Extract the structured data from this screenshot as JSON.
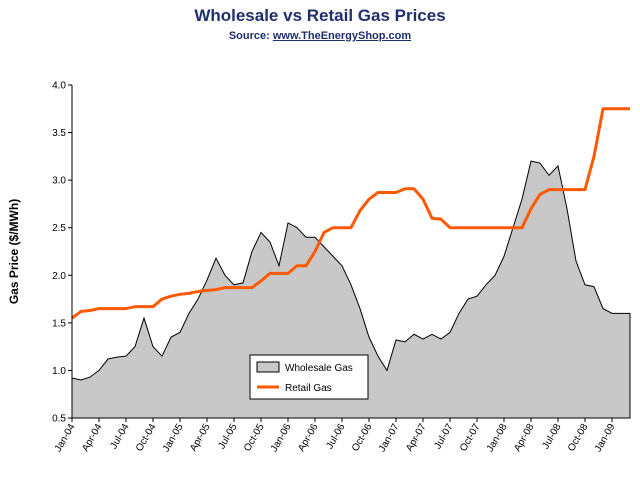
{
  "header": {
    "title": "Wholesale vs Retail Gas Prices",
    "source_prefix": "Source: ",
    "source_link": "www.TheEnergyShop.com"
  },
  "chart_data": {
    "type": "area",
    "title": "Wholesale vs Retail Gas Prices",
    "xlabel": "",
    "ylabel": "Gas Price ($/MWh)",
    "ylim": [
      0.5,
      4.0
    ],
    "yticks": [
      0.5,
      1.0,
      1.5,
      2.0,
      2.5,
      3.0,
      3.5,
      4.0
    ],
    "ytick_labels": [
      "0.5",
      "1.0",
      "1.5",
      "2.0",
      "2.5",
      "3.0",
      "3.5",
      "4.0"
    ],
    "grid": false,
    "legend_position": "bottom-center",
    "categories": [
      "Jan-04",
      "Feb-04",
      "Mar-04",
      "Apr-04",
      "May-04",
      "Jun-04",
      "Jul-04",
      "Aug-04",
      "Sep-04",
      "Oct-04",
      "Nov-04",
      "Dec-04",
      "Jan-05",
      "Feb-05",
      "Mar-05",
      "Apr-05",
      "May-05",
      "Jun-05",
      "Jul-05",
      "Aug-05",
      "Sep-05",
      "Oct-05",
      "Nov-05",
      "Dec-05",
      "Jan-06",
      "Feb-06",
      "Mar-06",
      "Apr-06",
      "May-06",
      "Jun-06",
      "Jul-06",
      "Aug-06",
      "Sep-06",
      "Oct-06",
      "Nov-06",
      "Dec-06",
      "Jan-07",
      "Feb-07",
      "Mar-07",
      "Apr-07",
      "May-07",
      "Jun-07",
      "Jul-07",
      "Aug-07",
      "Sep-07",
      "Oct-07",
      "Nov-07",
      "Dec-07",
      "Jan-08",
      "Feb-08",
      "Mar-08",
      "Apr-08",
      "May-08",
      "Jun-08",
      "Jul-08",
      "Aug-08",
      "Sep-08",
      "Oct-08",
      "Nov-08",
      "Dec-08",
      "Jan-09",
      "Feb-09",
      "Mar-09"
    ],
    "x_tick_labels": [
      "Jan-04",
      "Apr-04",
      "Jul-04",
      "Oct-04",
      "Jan-05",
      "Apr-05",
      "Jul-05",
      "Oct-05",
      "Jan-06",
      "Apr-06",
      "Jul-06",
      "Oct-06",
      "Jan-07",
      "Apr-07",
      "Jul-07",
      "Oct-07",
      "Jan-08",
      "Apr-08",
      "Jul-08",
      "Oct-08",
      "Jan-09"
    ],
    "series": [
      {
        "name": "Wholesale Gas",
        "kind": "area",
        "color": "#c8c8c8",
        "values": [
          0.92,
          0.9,
          0.93,
          1.0,
          1.12,
          1.14,
          1.15,
          1.25,
          1.55,
          1.25,
          1.15,
          1.35,
          1.4,
          1.6,
          1.75,
          1.95,
          2.18,
          2.0,
          1.9,
          1.92,
          2.25,
          2.45,
          2.35,
          2.1,
          2.55,
          2.5,
          2.4,
          2.4,
          2.3,
          2.2,
          2.1,
          1.9,
          1.65,
          1.35,
          1.15,
          1.0,
          1.32,
          1.3,
          1.38,
          1.33,
          1.38,
          1.33,
          1.4,
          1.6,
          1.75,
          1.78,
          1.9,
          2.0,
          2.2,
          2.5,
          2.8,
          3.2,
          3.18,
          3.05,
          3.15,
          2.7,
          2.15,
          1.9,
          1.88,
          1.65,
          1.6,
          1.6,
          1.6
        ]
      },
      {
        "name": "Retail Gas",
        "kind": "line",
        "color": "#ff5a00",
        "values": [
          1.55,
          1.62,
          1.63,
          1.65,
          1.65,
          1.65,
          1.65,
          1.67,
          1.67,
          1.67,
          1.75,
          1.78,
          1.8,
          1.81,
          1.83,
          1.84,
          1.85,
          1.87,
          1.87,
          1.87,
          1.87,
          1.94,
          2.02,
          2.02,
          2.02,
          2.1,
          2.1,
          2.25,
          2.45,
          2.5,
          2.5,
          2.5,
          2.68,
          2.8,
          2.87,
          2.87,
          2.87,
          2.91,
          2.91,
          2.8,
          2.6,
          2.59,
          2.5,
          2.5,
          2.5,
          2.5,
          2.5,
          2.5,
          2.5,
          2.5,
          2.5,
          2.7,
          2.85,
          2.9,
          2.9,
          2.9,
          2.9,
          2.9,
          3.25,
          3.75,
          3.75,
          3.75,
          3.75
        ]
      }
    ]
  }
}
